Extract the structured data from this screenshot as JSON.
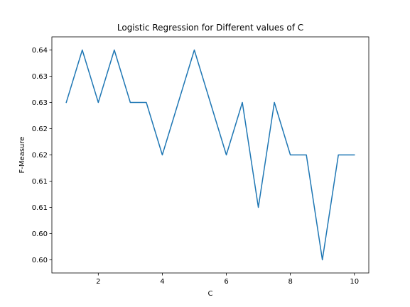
{
  "chart_data": {
    "type": "line",
    "title": "Logistic Regression for Different values of C",
    "xlabel": "C",
    "ylabel": "F-Measure",
    "xlim": [
      0.55,
      10.45
    ],
    "ylim": [
      0.5975,
      0.6425
    ],
    "x_ticks": [
      2,
      4,
      6,
      8,
      10
    ],
    "y_ticks": [
      {
        "value": 0.6,
        "label": "0.60"
      },
      {
        "value": 0.605,
        "label": "0.60"
      },
      {
        "value": 0.61,
        "label": "0.61"
      },
      {
        "value": 0.615,
        "label": "0.61"
      },
      {
        "value": 0.62,
        "label": "0.62"
      },
      {
        "value": 0.625,
        "label": "0.62"
      },
      {
        "value": 0.63,
        "label": "0.63"
      },
      {
        "value": 0.635,
        "label": "0.63"
      },
      {
        "value": 0.64,
        "label": "0.64"
      }
    ],
    "grid": false,
    "series": [
      {
        "color": "#1f77b4",
        "x": [
          1.0,
          1.5,
          2.0,
          2.5,
          3.0,
          3.5,
          4.0,
          4.5,
          5.0,
          5.5,
          6.0,
          6.5,
          7.0,
          7.5,
          8.0,
          8.5,
          9.0,
          9.5,
          10.0
        ],
        "y": [
          0.63,
          0.64,
          0.63,
          0.64,
          0.63,
          0.63,
          0.62,
          0.63,
          0.64,
          0.63,
          0.62,
          0.63,
          0.61,
          0.63,
          0.62,
          0.62,
          0.6,
          0.62,
          0.62
        ]
      }
    ]
  }
}
